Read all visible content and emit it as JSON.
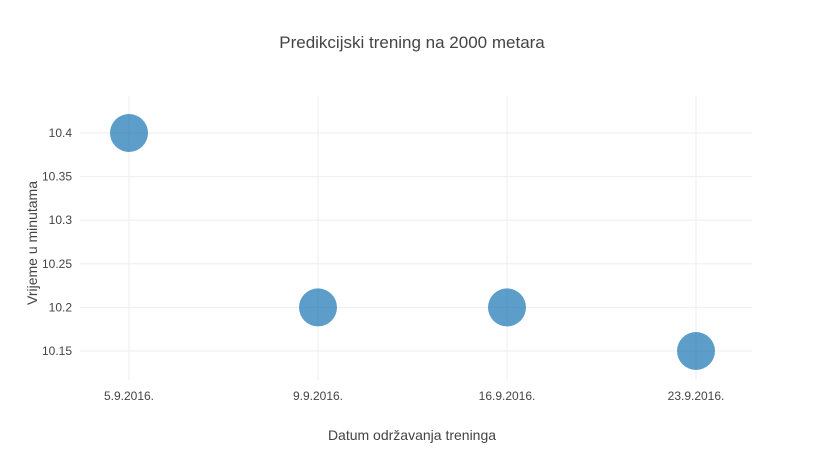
{
  "chart_data": {
    "type": "scatter",
    "title": "Predikcijski trening na 2000 metara",
    "xlabel": "Datum održavanja treninga",
    "ylabel": "Vrijeme u minutama",
    "categories": [
      "5.9.2016.",
      "9.9.2016.",
      "16.9.2016.",
      "23.9.2016."
    ],
    "series": [
      {
        "values": [
          10.4,
          10.2,
          10.2,
          10.15
        ],
        "color": "#1f77b4"
      }
    ],
    "yticks": [
      "10.15",
      "10.2",
      "10.25",
      "10.3",
      "10.35",
      "10.4"
    ],
    "ylim": [
      10.12,
      10.44
    ],
    "grid": true,
    "legend": "none"
  }
}
